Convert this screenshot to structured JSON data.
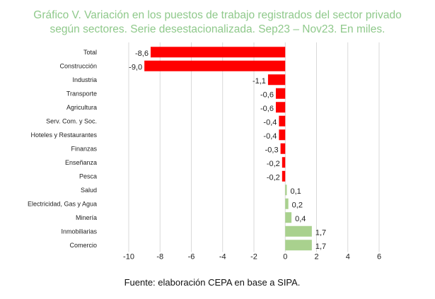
{
  "title_lines": [
    "Gráfico V. Variación en los puestos de trabajo registrados del sector privado",
    "según sectores. Serie desestacionalizada. Sep23 – Nov23. En miles."
  ],
  "source": "Fuente: elaboración CEPA en base a SIPA.",
  "colors": {
    "negative": "#ff0000",
    "positive": "#a9d18e",
    "grid": "#d9d9d9",
    "title": "#8fc98b"
  },
  "chart_data": {
    "type": "bar",
    "orientation": "horizontal",
    "categories": [
      "Total",
      "Construcción",
      "Industria",
      "Transporte",
      "Agricultura",
      "Serv. Com. y Soc.",
      "Hoteles y Restaurantes",
      "Finanzas",
      "Enseñanza",
      "Pesca",
      "Salud",
      "Electricidad, Gas y Agua",
      "Minería",
      "Inmobiliarias",
      "Comercio"
    ],
    "values": [
      -8.6,
      -9.0,
      -1.1,
      -0.6,
      -0.6,
      -0.4,
      -0.4,
      -0.3,
      -0.2,
      -0.2,
      0.1,
      0.2,
      0.4,
      1.7,
      1.7
    ],
    "value_labels": [
      "-8,6",
      "-9,0",
      "-1,1",
      "-0,6",
      "-0,6",
      "-0,4",
      "-0,4",
      "-0,3",
      "-0,2",
      "-0,2",
      "0,1",
      "0,2",
      "0,4",
      "1,7",
      "1,7"
    ],
    "xlim": [
      -10,
      6
    ],
    "xticks": [
      -10,
      -8,
      -6,
      -4,
      -2,
      0,
      2,
      4,
      6
    ],
    "xtick_labels": [
      "-10",
      "-8",
      "-6",
      "-4",
      "-2",
      "0",
      "2",
      "4",
      "6"
    ],
    "grid": true,
    "title": "Gráfico V. Variación en los puestos de trabajo registrados del sector privado según sectores. Serie desestacionalizada. Sep23 – Nov23. En miles.",
    "xlabel": "",
    "ylabel": ""
  }
}
